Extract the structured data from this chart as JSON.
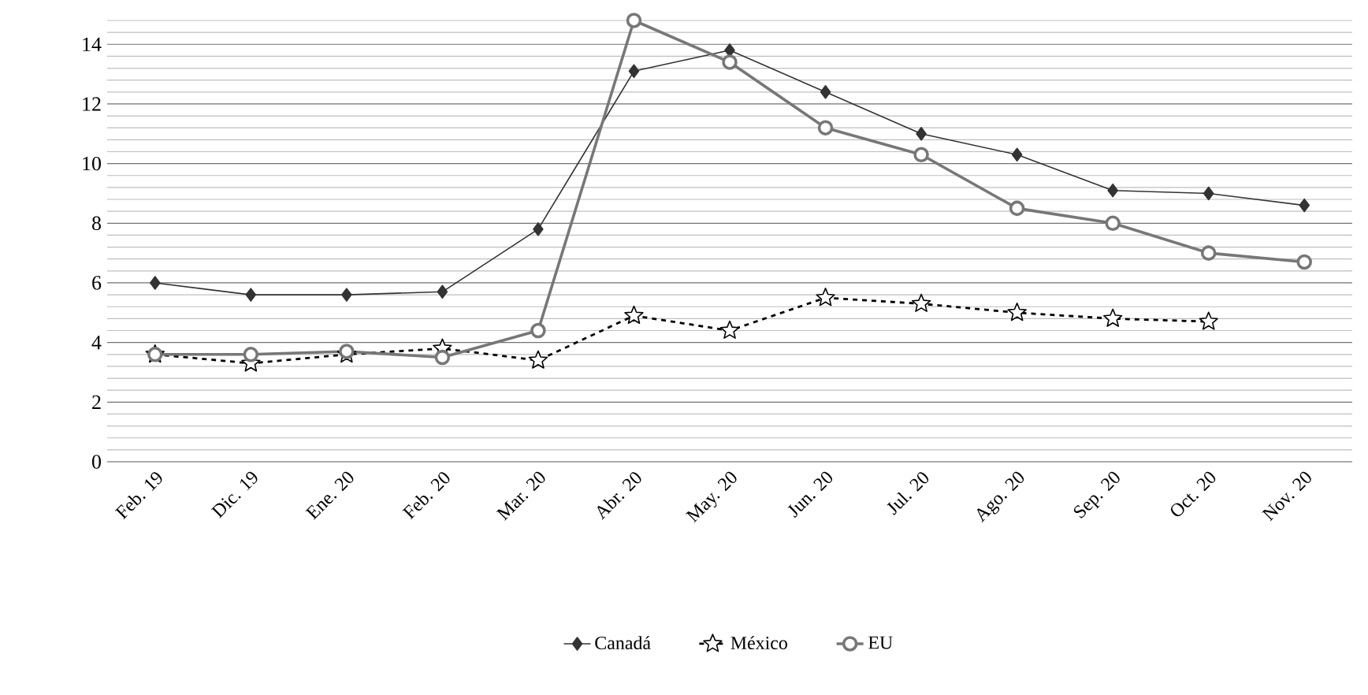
{
  "chart_data": {
    "type": "line",
    "categories": [
      "Feb. 19",
      "Dic. 19",
      "Ene. 20",
      "Feb. 20",
      "Mar. 20",
      "Abr. 20",
      "May. 20",
      "Jun. 20",
      "Jul. 20",
      "Ago. 20",
      "Sep. 20",
      "Oct. 20",
      "Nov. 20"
    ],
    "series": [
      {
        "name": "Canadá",
        "color": "#333333",
        "marker": "diamond",
        "line_style": "solid",
        "values": [
          6.0,
          5.6,
          5.6,
          5.7,
          7.8,
          13.1,
          13.8,
          12.4,
          11.0,
          10.3,
          9.1,
          9.0,
          8.6
        ]
      },
      {
        "name": "México",
        "color": "#000000",
        "marker": "star",
        "line_style": "dashed",
        "values": [
          3.6,
          3.3,
          3.6,
          3.8,
          3.4,
          4.9,
          4.4,
          5.5,
          5.3,
          5.0,
          4.8,
          4.7,
          null
        ]
      },
      {
        "name": "EU",
        "color": "#777777",
        "marker": "circle",
        "line_style": "solid",
        "values": [
          3.6,
          3.6,
          3.7,
          3.5,
          4.4,
          14.8,
          13.4,
          11.2,
          10.3,
          8.5,
          8.0,
          7.0,
          6.7
        ]
      }
    ],
    "ylim": [
      0,
      14.8
    ],
    "yticks": [
      0,
      {
        "value": 0.4,
        "label": null
      },
      {
        "value": 0.8,
        "label": null
      },
      {
        "value": 1.2,
        "label": null
      },
      {
        "value": 1.6,
        "label": null
      },
      2,
      {
        "value": 2.4,
        "label": null
      },
      {
        "value": 2.8,
        "label": null
      },
      {
        "value": 3.2,
        "label": null
      },
      {
        "value": 3.6,
        "label": null
      },
      4,
      {
        "value": 4.4,
        "label": null
      },
      {
        "value": 4.8,
        "label": null
      },
      {
        "value": 5.2,
        "label": null
      },
      {
        "value": 5.6,
        "label": null
      },
      6,
      {
        "value": 6.4,
        "label": null
      },
      {
        "value": 6.8,
        "label": null
      },
      {
        "value": 7.2,
        "label": null
      },
      {
        "value": 7.6,
        "label": null
      },
      8,
      {
        "value": 8.4,
        "label": null
      },
      {
        "value": 8.8,
        "label": null
      },
      {
        "value": 9.2,
        "label": null
      },
      {
        "value": 9.6,
        "label": null
      },
      10,
      {
        "value": 10.4,
        "label": null
      },
      {
        "value": 10.8,
        "label": null
      },
      {
        "value": 11.2,
        "label": null
      },
      {
        "value": 11.6,
        "label": null
      },
      12,
      {
        "value": 12.4,
        "label": null
      },
      {
        "value": 12.8,
        "label": null
      },
      {
        "value": 13.2,
        "label": null
      },
      {
        "value": 13.6,
        "label": null
      },
      14,
      {
        "value": 14.4,
        "label": null
      },
      {
        "value": 14.8,
        "label": null
      }
    ],
    "grid": "y",
    "legend": "bottom"
  }
}
